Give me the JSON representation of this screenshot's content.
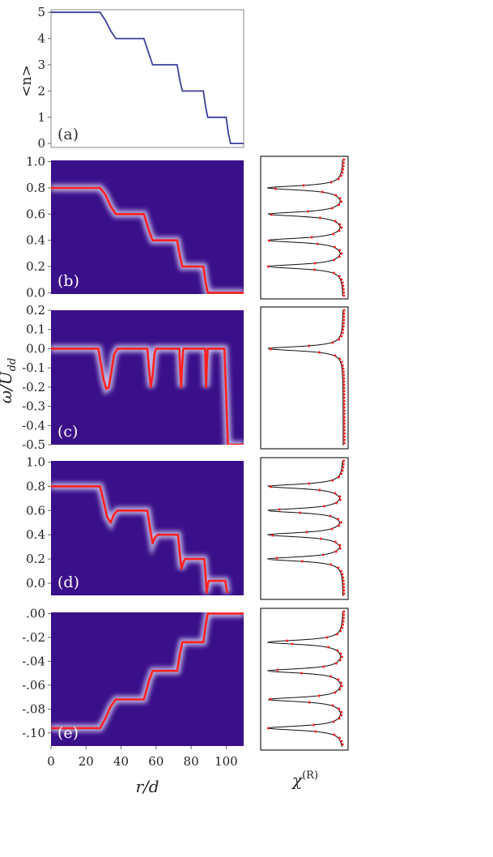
{
  "figure": {
    "xlabel": "r/d",
    "ylabel_a": "<n>",
    "ylabel_freq": "ω/U",
    "ylabel_freq_sub": "dd",
    "side_label": "χ",
    "side_label_sup": "(R)"
  },
  "colors": {
    "background": "#3a0f8a",
    "curve": "#ff2020",
    "line_a": "#3b3f9c",
    "glow": "#e8e8ff"
  },
  "chart_data": [
    {
      "id": "a",
      "panel_label": "(a)",
      "type": "line",
      "ylabel": "<n>",
      "xlim": [
        0,
        110
      ],
      "ylim": [
        -0.15,
        5.1
      ],
      "yticks": [
        0,
        1,
        2,
        3,
        4,
        5
      ],
      "ytick_labels": [
        "0",
        "1",
        "2",
        "3",
        "4",
        "5"
      ],
      "x": [
        0,
        28,
        31,
        34,
        37,
        53,
        56,
        58,
        72,
        73.6,
        75,
        87,
        88.3,
        89.5,
        100,
        101.2,
        102.5,
        110
      ],
      "y": [
        5,
        5,
        4.7,
        4.3,
        4,
        4,
        3.4,
        3,
        3,
        2.4,
        2,
        2,
        1.4,
        1,
        1,
        0.4,
        0,
        0
      ]
    },
    {
      "id": "b",
      "panel_label": "(b)",
      "type": "heatmap",
      "xlim": [
        0,
        110
      ],
      "ylim": [
        -0.01,
        1.01
      ],
      "yticks": [
        0.0,
        0.2,
        0.4,
        0.6,
        0.8,
        1.0
      ],
      "ytick_labels": [
        "0.0",
        "0.2",
        "0.4",
        "0.6",
        "0.8",
        "1.0"
      ],
      "curve_x": [
        0,
        28,
        31,
        34,
        37,
        53,
        56,
        58,
        72,
        73.6,
        75,
        87,
        88.3,
        89.5,
        110
      ],
      "curve_y": [
        0.8,
        0.8,
        0.75,
        0.66,
        0.6,
        0.6,
        0.47,
        0.4,
        0.4,
        0.28,
        0.2,
        0.2,
        0.08,
        0.0,
        0.0
      ]
    },
    {
      "id": "c",
      "panel_label": "(c)",
      "type": "heatmap",
      "xlim": [
        0,
        110
      ],
      "ylim": [
        -0.5,
        0.2
      ],
      "yticks": [
        -0.5,
        -0.4,
        -0.3,
        -0.2,
        -0.1,
        0.0,
        0.1,
        0.2
      ],
      "ytick_labels": [
        "-0.5",
        "-0.4",
        "-0.3",
        "-0.2",
        "-0.1",
        "0.0",
        "0.1",
        "0.2"
      ],
      "curve_x": [
        0,
        27,
        28.5,
        30,
        31.5,
        33,
        34.5,
        36,
        38,
        55,
        56,
        57,
        58,
        59,
        60,
        73.3,
        73.8,
        74.3,
        74.8,
        75.5,
        88,
        88.3,
        88.6,
        89,
        89.5,
        99,
        100,
        101,
        110
      ],
      "curve_y": [
        0,
        0,
        -0.08,
        -0.16,
        -0.21,
        -0.2,
        -0.12,
        -0.03,
        0,
        0,
        -0.11,
        -0.2,
        -0.14,
        -0.03,
        0,
        0,
        -0.12,
        -0.2,
        -0.1,
        0,
        0,
        -0.12,
        -0.2,
        -0.08,
        0,
        0,
        -0.25,
        -0.5,
        -0.5
      ]
    },
    {
      "id": "d",
      "panel_label": "(d)",
      "type": "heatmap",
      "xlim": [
        0,
        110
      ],
      "ylim": [
        -0.1,
        1.01
      ],
      "yticks": [
        0.0,
        0.2,
        0.4,
        0.6,
        0.8,
        1.0
      ],
      "ytick_labels": [
        "0.0",
        "0.2",
        "0.4",
        "0.6",
        "0.8",
        "1.0"
      ],
      "curve_x": [
        0,
        28,
        30,
        32,
        34,
        36,
        38,
        55,
        56.5,
        58,
        59.5,
        61,
        72.5,
        73.5,
        74.5,
        75.5,
        76.5,
        87.5,
        88.2,
        88.9,
        89.6,
        90.3,
        99.5,
        100.2,
        100.8
      ],
      "curve_y": [
        0.8,
        0.8,
        0.68,
        0.55,
        0.5,
        0.57,
        0.6,
        0.6,
        0.46,
        0.33,
        0.38,
        0.4,
        0.4,
        0.25,
        0.12,
        0.17,
        0.2,
        0.2,
        0.08,
        -0.08,
        0.0,
        0.02,
        0.02,
        -0.05,
        -0.08
      ]
    },
    {
      "id": "e",
      "panel_label": "(e)",
      "type": "heatmap",
      "xlim": [
        0,
        110
      ],
      "xticks": [
        0,
        20,
        40,
        60,
        80,
        100
      ],
      "xtick_labels": [
        "0",
        "20",
        "40",
        "60",
        "80",
        "100"
      ],
      "ylim": [
        -0.111,
        0.001
      ],
      "yticks": [
        -0.1,
        -0.08,
        -0.06,
        -0.04,
        -0.02,
        0.0
      ],
      "ytick_labels": [
        "-.10",
        "-.08",
        "-.06",
        "-.04",
        "-.02",
        ".00"
      ],
      "curve_x": [
        0,
        28,
        31,
        34,
        37,
        53,
        56,
        58,
        72,
        73.6,
        75,
        87,
        88.3,
        89.5,
        110
      ],
      "curve_y": [
        -0.096,
        -0.096,
        -0.088,
        -0.078,
        -0.072,
        -0.072,
        -0.056,
        -0.048,
        -0.048,
        -0.034,
        -0.024,
        -0.024,
        -0.01,
        0.0,
        0.0
      ]
    }
  ],
  "side_panels": [
    {
      "id": "b",
      "peaks": [
        0.8,
        0.6,
        0.4,
        0.2
      ],
      "dips": [
        0.8,
        0.6,
        0.4,
        0.2
      ]
    },
    {
      "id": "c",
      "peaks": [
        0.0
      ],
      "dips": [
        0.0
      ]
    },
    {
      "id": "d",
      "peaks": [
        0.8,
        0.6,
        0.4,
        0.2
      ],
      "dips": [
        0.8,
        0.6,
        0.4,
        0.2
      ]
    },
    {
      "id": "e",
      "peaks": [
        -0.024,
        -0.048,
        -0.072,
        -0.096
      ],
      "dips": [
        -0.024,
        -0.048,
        -0.072,
        -0.096
      ]
    }
  ]
}
